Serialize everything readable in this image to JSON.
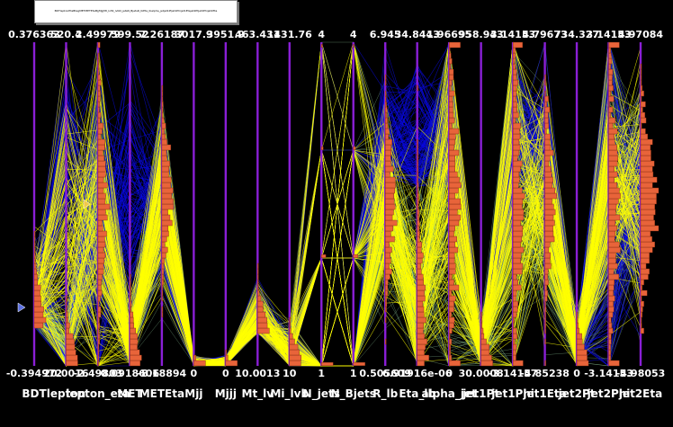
{
  "title_box": {
    "text": "BDTleptonEtaBtagMETMETEtaMjjMjjjMt_lvMi_lvbN_jetsN_BjetsR_lbEta_lbalpha_jetjet1Ptjet1Phijet1Etajet2Ptjet2Phijet2Eta"
  },
  "colors": {
    "background": "#000000",
    "axis": "#8a1fd6",
    "green_lines": "#8fc99a",
    "blue_lines": "#0a0ae6",
    "yellow_lines": "#ffff00",
    "histogram_fill": "#e8643a",
    "histogram_edge": "#7a2a10",
    "range_marker": "#5b6fe0",
    "label_text": "#ffffff"
  },
  "chart_data": {
    "type": "parallel_coordinates",
    "axes": [
      {
        "name": "BDT",
        "max": "0.376363",
        "min": "-0.394972"
      },
      {
        "name": "lepton",
        "max": "520.4",
        "min": "20.0016"
      },
      {
        "name": "lepton_eta",
        "max": "2.49979",
        "min": "-2.49803"
      },
      {
        "name": "MET",
        "max": "599.52",
        "min": "0.0918606"
      },
      {
        "name": "METEta",
        "max": "7.26187",
        "min": "-8.18894"
      },
      {
        "name": "Mjj",
        "max": "3017.9",
        "min": "0"
      },
      {
        "name": "Mjjj",
        "max": "3951.9",
        "min": "0"
      },
      {
        "name": "Mt_lv",
        "max": "463.431",
        "min": "10.0013"
      },
      {
        "name": "Mi_lvb",
        "max": "1431.76",
        "min": "10"
      },
      {
        "name": "N_jets",
        "max": "4",
        "min": "1"
      },
      {
        "name": "N_Bjets",
        "max": "4",
        "min": "1"
      },
      {
        "name": "R_lb",
        "max": "6.945",
        "min": "0.505609"
      },
      {
        "name": "Eta_lb",
        "max": "34.8443",
        "min": "6.91916e-06"
      },
      {
        "name": "alpha_jet",
        "max": "1.96695",
        "min": "0"
      },
      {
        "name": "jet1Pt",
        "max": "958.943",
        "min": "30.0008"
      },
      {
        "name": "jet1Phi",
        "max": "3.14153",
        "min": "-3.14157"
      },
      {
        "name": "jet1Eta",
        "max": "4.79673",
        "min": "-4.85238"
      },
      {
        "name": "jet2Pt",
        "max": "734.327",
        "min": "0"
      },
      {
        "name": "jet2Phi",
        "max": "3.14153",
        "min": "-3.14153"
      },
      {
        "name": "jet2Eta",
        "max": "4.97084",
        "min": "-4.98053"
      }
    ],
    "grid": false,
    "legend": "none"
  }
}
